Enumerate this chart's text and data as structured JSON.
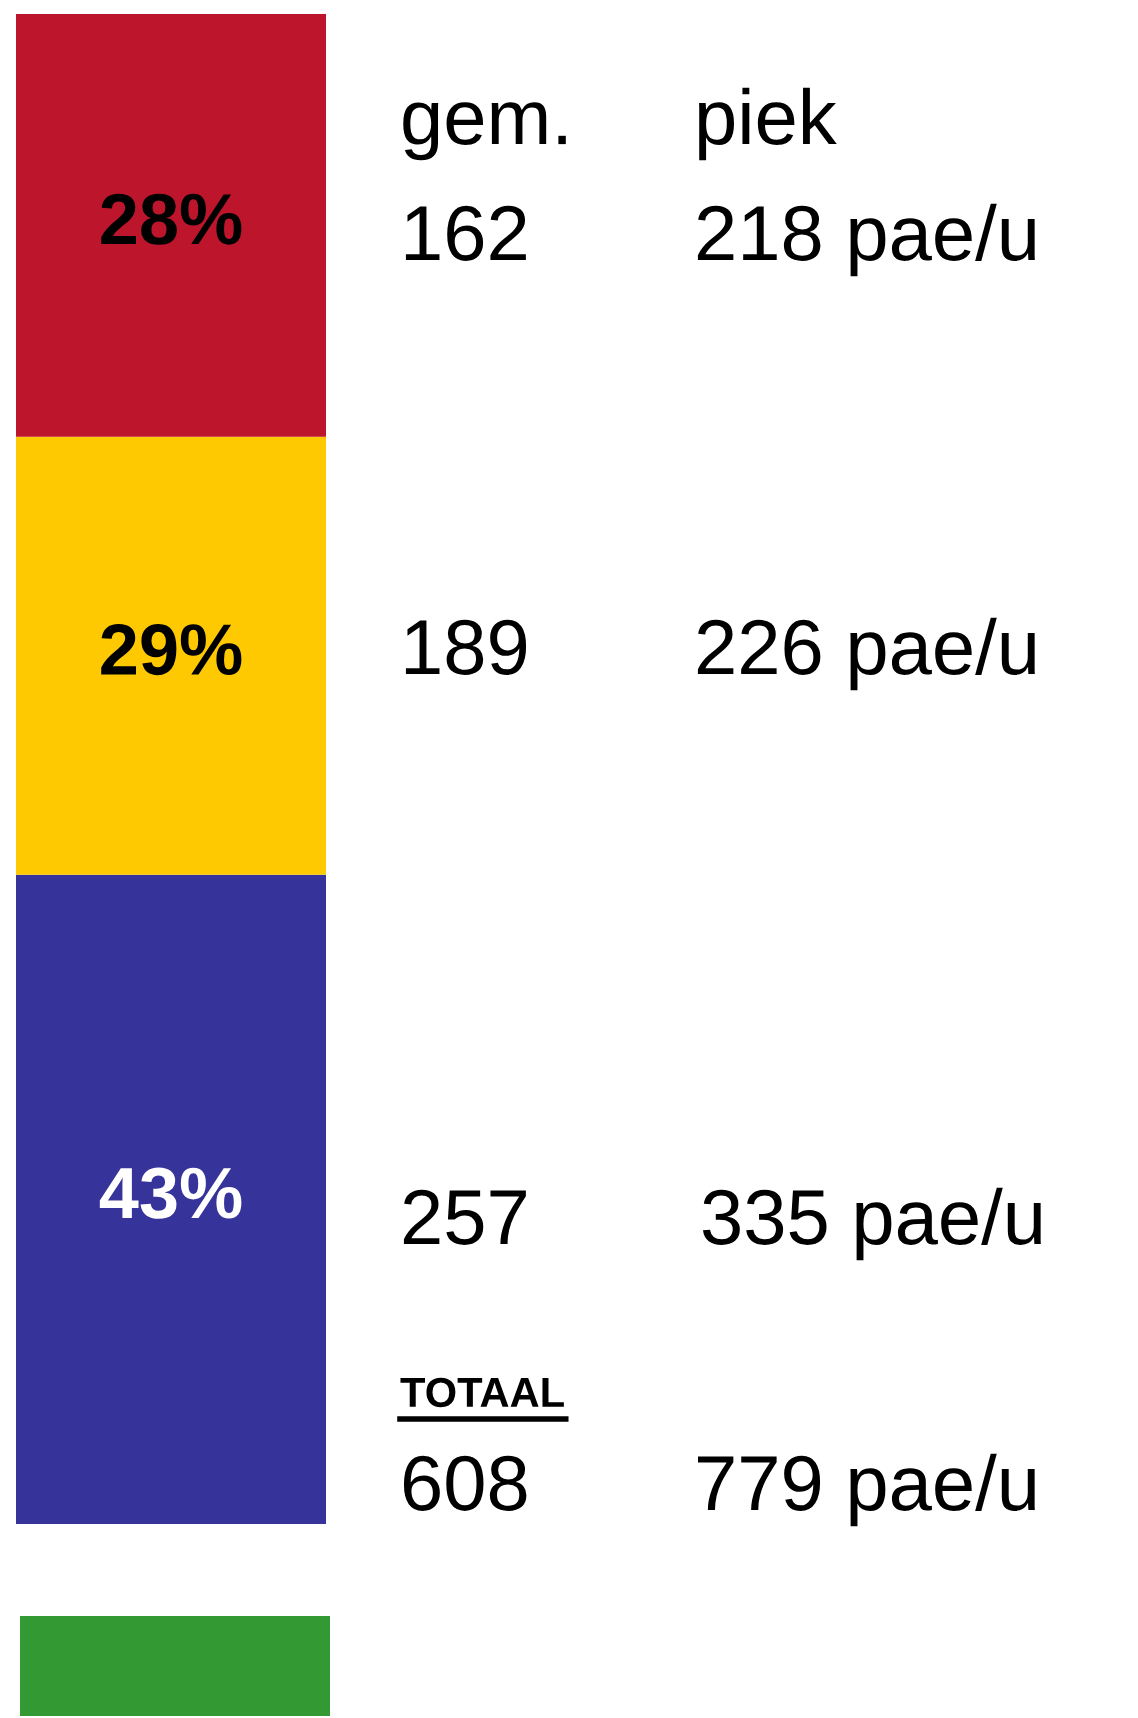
{
  "chart_data": {
    "type": "bar",
    "stacked": true,
    "categories": [
      null
    ],
    "series": [
      {
        "color": "#36349a",
        "values": [
          43
        ],
        "value_labels": [
          "43%"
        ]
      },
      {
        "color": "#fec900",
        "values": [
          29
        ],
        "value_labels": [
          "29%"
        ]
      },
      {
        "color": "#bc152c",
        "values": [
          28
        ],
        "value_labels": [
          "28%"
        ]
      }
    ],
    "annotations": [
      "gem.",
      "piek",
      "162",
      "218 pae/u",
      "189",
      "226 pae/u",
      "257",
      "335 pae/u",
      "TOTAAL",
      "608",
      "779 pae/u"
    ],
    "legend": false
  }
}
